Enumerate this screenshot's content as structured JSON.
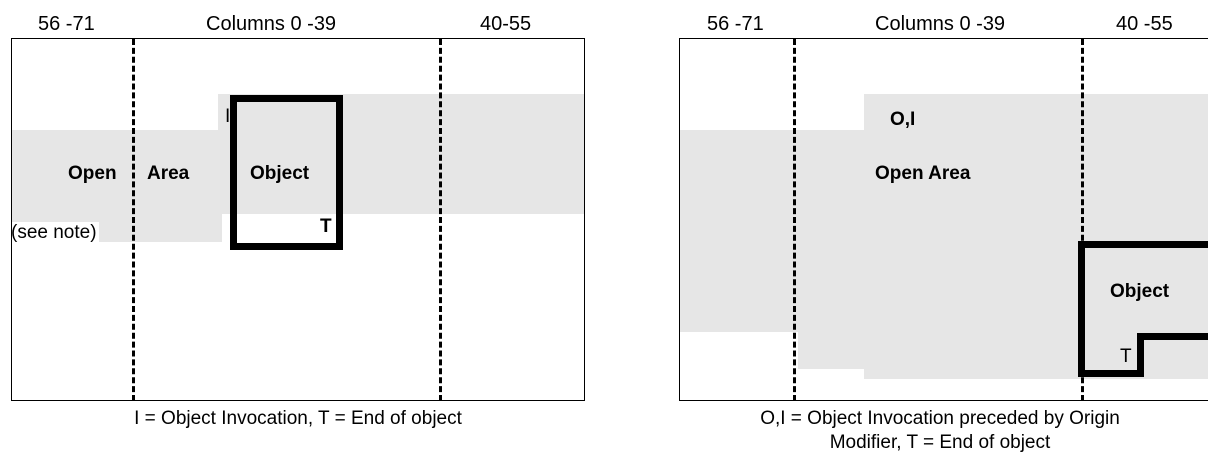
{
  "left_diagram": {
    "header_left": "56 -71",
    "header_center": "Columns 0 -39",
    "header_right": "40-55",
    "marker_invocation": "I",
    "label_open": "Open",
    "label_area": "Area",
    "label_object": "Object",
    "marker_end": "T",
    "label_note": "(see note)",
    "caption": "I = Object Invocation, T = End of object"
  },
  "right_diagram": {
    "header_left": "56 -71",
    "header_center": "Columns 0 -39",
    "header_right": "40 -55",
    "marker_origin_invocation": "O,I",
    "label_open_area": "Open Area",
    "label_object": "Object",
    "marker_end": "T",
    "caption_line1": "O,I = Object Invocation preceded by Origin",
    "caption_line2": "Modifier, T = End of object"
  }
}
